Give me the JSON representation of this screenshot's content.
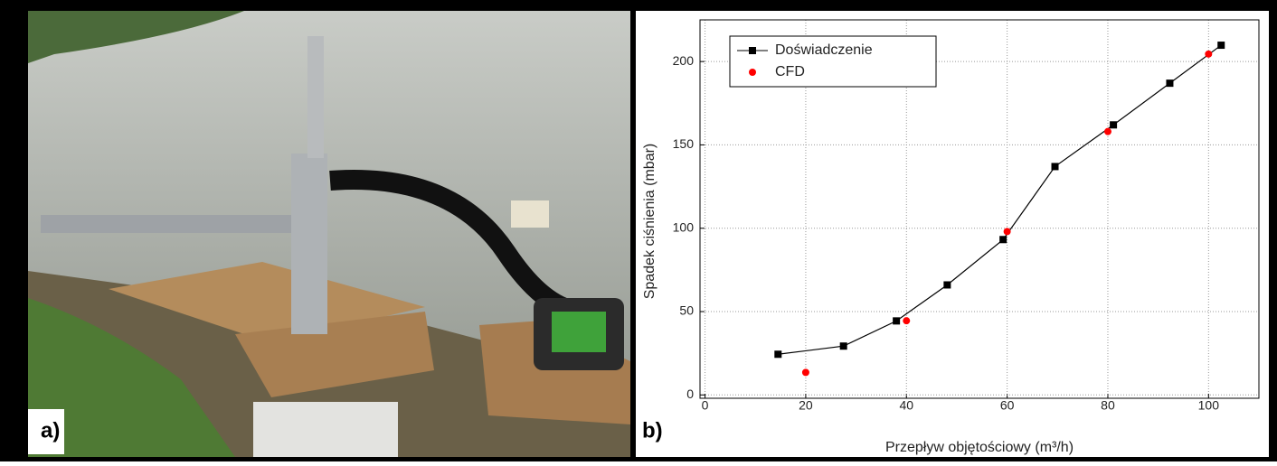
{
  "panel_labels": [
    "a)",
    "b)"
  ],
  "chart_data": {
    "type": "line",
    "xlabel": "Przepływ objętościowy (m³/h)",
    "ylabel": "Spadek ciśnienia (mbar)",
    "xlim": [
      -1,
      110
    ],
    "ylim": [
      -2,
      225
    ],
    "xticks": [
      0,
      20,
      40,
      60,
      80,
      100
    ],
    "yticks": [
      0,
      50,
      100,
      150,
      200
    ],
    "grid": true,
    "legend": "upper-left",
    "series": [
      {
        "name": "Doświadczenie",
        "color": "#000000",
        "line": true,
        "marker": "square",
        "x": [
          14.5,
          27.5,
          38,
          48.1,
          59.2,
          69.5,
          81.1,
          92.3,
          102.5
        ],
        "values": [
          24.4,
          29.3,
          44.4,
          66,
          93.2,
          137,
          162,
          187,
          209.8
        ]
      },
      {
        "name": "CFD",
        "color": "#ff0000",
        "line": false,
        "marker": "circle",
        "x": [
          20,
          40,
          60,
          80,
          100
        ],
        "values": [
          13.5,
          44.5,
          98,
          158,
          204.5
        ]
      }
    ]
  }
}
